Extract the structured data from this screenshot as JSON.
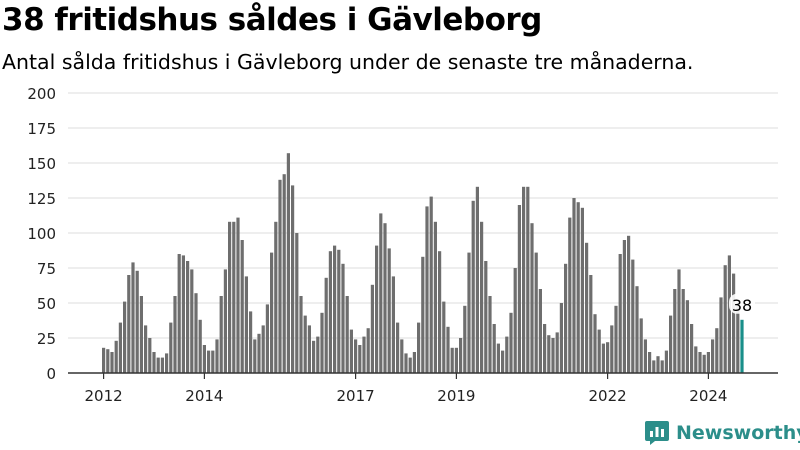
{
  "title": "38 fritidshus såldes i Gävleborg",
  "subtitle": "Antal sålda fritidshus i Gävleborg under de senaste tre månaderna.",
  "brand": {
    "name": "Newsworthy",
    "icon": "newsworthy-logo-icon",
    "color": "#2c8e8a"
  },
  "colors": {
    "bar": "#6e6e6e",
    "highlight": "#1a8f8a",
    "grid": "#dddddd",
    "axis": "#333333"
  },
  "chart_data": {
    "type": "bar",
    "ylim": [
      0,
      200
    ],
    "yticks": [
      0,
      25,
      50,
      75,
      100,
      125,
      150,
      175,
      200
    ],
    "xticks": [
      "2012",
      "2014",
      "2017",
      "2019",
      "2022",
      "2024"
    ],
    "grid": true,
    "annotation": {
      "text": "38",
      "target": "last"
    },
    "series": [
      {
        "values": [
          18,
          17,
          15,
          23,
          36,
          51,
          70,
          79,
          73,
          55,
          34,
          25,
          15,
          11,
          11,
          14,
          36,
          55,
          85,
          84,
          80,
          74,
          57,
          38,
          20,
          16,
          16,
          24,
          55,
          74,
          108,
          108,
          111,
          95,
          69,
          44,
          24,
          28,
          34,
          49,
          86,
          108,
          138,
          142,
          157,
          134,
          100,
          55,
          41,
          34,
          23,
          26,
          43,
          68,
          87,
          91,
          88,
          78,
          55,
          31,
          24,
          20,
          26,
          32,
          63,
          91,
          114,
          107,
          89,
          69,
          36,
          24,
          14,
          11,
          15,
          36,
          83,
          119,
          126,
          108,
          87,
          51,
          33,
          18,
          18,
          25,
          48,
          86,
          123,
          133,
          108,
          80,
          55,
          35,
          21,
          16,
          26,
          43,
          75,
          120,
          133,
          133,
          107,
          86,
          60,
          35,
          27,
          25,
          29,
          50,
          78,
          111,
          125,
          122,
          118,
          93,
          70,
          42,
          31,
          21,
          22,
          34,
          48,
          85,
          95,
          98,
          81,
          62,
          39,
          24,
          15,
          9,
          12,
          9,
          16,
          41,
          60,
          74,
          60,
          52,
          35,
          19,
          15,
          13,
          15,
          24,
          32,
          54,
          77,
          84,
          71,
          50,
          38
        ]
      }
    ]
  }
}
